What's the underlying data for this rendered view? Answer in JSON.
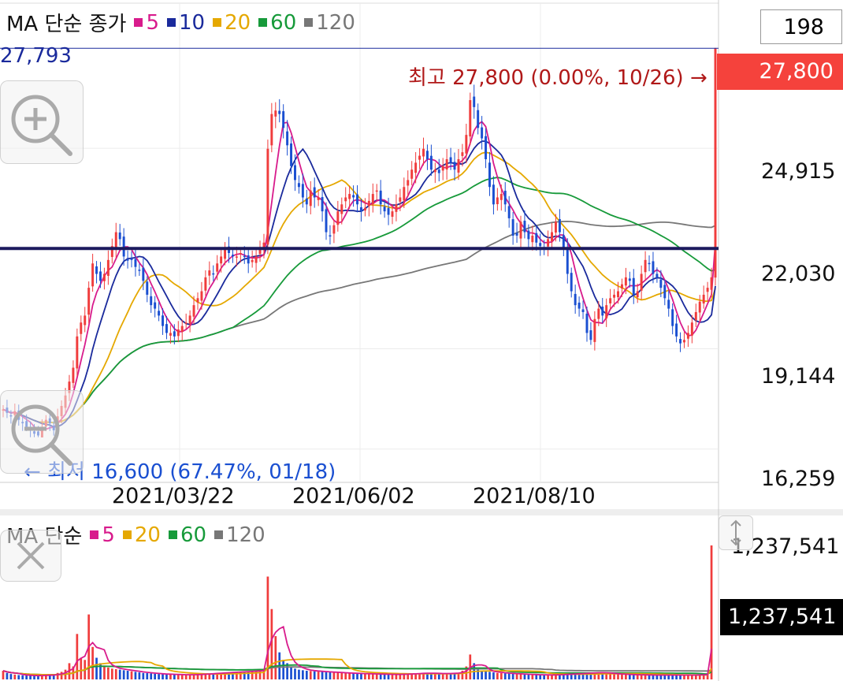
{
  "price_legend": {
    "title": "MA 단순 종가",
    "items": [
      {
        "label": "5",
        "color": "#d81b8c"
      },
      {
        "label": "10",
        "color": "#1a2a9c"
      },
      {
        "label": "20",
        "color": "#e5a800"
      },
      {
        "label": "60",
        "color": "#179a3a"
      },
      {
        "label": "120",
        "color": "#777777"
      }
    ]
  },
  "volume_legend": {
    "title": "MA 단순",
    "items": [
      {
        "label": "5",
        "color": "#d81b8c"
      },
      {
        "label": "20",
        "color": "#e5a800"
      },
      {
        "label": "60",
        "color": "#179a3a"
      },
      {
        "label": "120",
        "color": "#777777"
      }
    ]
  },
  "count_box": "198",
  "crosshair_value": "27,793",
  "high_note": "최고 27,800 (0.00%, 10/26) →",
  "low_note": "← 최저 16,600 (67.47%, 01/18)",
  "current_price_tag": "27,800",
  "volume_tag_top": "1,237,541",
  "volume_tag_current": "1,237,541",
  "colors": {
    "up": "#f03c3c",
    "down": "#1a4fd1",
    "hline": "#1c1a5e",
    "crosshair": "#1a2a9c",
    "high": "#b01818",
    "low": "#1a4fd1"
  },
  "icons": {
    "zoom_in": "zoom-in-icon",
    "zoom_out": "zoom-out-icon",
    "close": "close-icon",
    "resize": "resize-icon"
  },
  "chart_data": {
    "type": "candlestick",
    "y_ticks": [
      "24,915",
      "22,030",
      "19,144",
      "16,259"
    ],
    "x_ticks": [
      "2021/03/22",
      "2021/06/02",
      "2021/08/10"
    ],
    "ylim": [
      15300,
      29000
    ],
    "horizontal_line": 22030,
    "crosshair_y": 27793,
    "high": {
      "value": 27800,
      "date": "10/26"
    },
    "low": {
      "value": 16600,
      "date": "01/18"
    },
    "volume_y_ticks": [
      "1,237,541"
    ],
    "volume_ylim": [
      0,
      1237541
    ],
    "closes": [
      17400,
      17300,
      17200,
      17350,
      17100,
      17000,
      16900,
      16800,
      16700,
      16650,
      16900,
      17100,
      17000,
      16800,
      17200,
      17500,
      17800,
      18200,
      18600,
      19500,
      19900,
      20100,
      20900,
      21600,
      21300,
      21100,
      21300,
      21700,
      22100,
      22500,
      22300,
      21800,
      21700,
      21700,
      21500,
      21400,
      21100,
      20700,
      20400,
      20300,
      20100,
      19800,
      19600,
      19600,
      19500,
      19700,
      19800,
      19900,
      20100,
      20400,
      20600,
      20800,
      21200,
      21400,
      21300,
      21600,
      21800,
      22000,
      21900,
      21800,
      21800,
      21900,
      21800,
      21600,
      21700,
      21800,
      22000,
      22200,
      24900,
      25900,
      26000,
      25900,
      25500,
      25000,
      24400,
      24000,
      23800,
      23500,
      23300,
      23700,
      23500,
      23500,
      23100,
      22500,
      22400,
      22700,
      23100,
      23300,
      23500,
      23600,
      23500,
      23300,
      23100,
      23200,
      23400,
      23600,
      23700,
      23300,
      23100,
      23000,
      23100,
      23300,
      23500,
      23800,
      24000,
      24300,
      24500,
      24700,
      24900,
      24600,
      24300,
      24300,
      24200,
      24400,
      24600,
      24500,
      24300,
      24600,
      24800,
      25300,
      26300,
      26100,
      25500,
      25200,
      24600,
      23800,
      23300,
      23500,
      23600,
      23300,
      22900,
      22400,
      22400,
      22800,
      22500,
      22300,
      22400,
      22200,
      22100,
      22000,
      22300,
      22500,
      22800,
      22500,
      22000,
      21300,
      20800,
      20400,
      20300,
      20200,
      19600,
      19400,
      20000,
      20300,
      20100,
      20400,
      20600,
      20700,
      20800,
      21000,
      21200,
      21100,
      20700,
      20800,
      21300,
      21700,
      21600,
      21300,
      21200,
      20900,
      20600,
      20300,
      19800,
      19500,
      19300,
      19400,
      19600,
      19900,
      20200,
      20500,
      20700,
      20900,
      21200,
      27800
    ],
    "volume": [
      80000,
      60000,
      50000,
      45000,
      40000,
      38000,
      36000,
      35000,
      34000,
      33000,
      40000,
      45000,
      40000,
      38000,
      60000,
      70000,
      90000,
      150000,
      120000,
      420000,
      200000,
      180000,
      600000,
      300000,
      200000,
      150000,
      120000,
      110000,
      100000,
      95000,
      90000,
      85000,
      80000,
      75000,
      70000,
      65000,
      60000,
      58000,
      55000,
      52000,
      50000,
      48000,
      47000,
      46000,
      45000,
      44000,
      43000,
      42000,
      44000,
      46000,
      48000,
      50000,
      52000,
      55000,
      58000,
      60000,
      62000,
      64000,
      66000,
      68000,
      70000,
      72000,
      74000,
      75000,
      78000,
      80000,
      85000,
      90000,
      950000,
      650000,
      400000,
      250000,
      180000,
      150000,
      120000,
      100000,
      90000,
      85000,
      80000,
      78000,
      75000,
      72000,
      70000,
      68000,
      66000,
      64000,
      62000,
      60000,
      58000,
      56000,
      55000,
      54000,
      53000,
      52000,
      51000,
      50000,
      49000,
      48000,
      47000,
      46000,
      45000,
      46000,
      48000,
      50000,
      52000,
      54000,
      56000,
      58000,
      60000,
      58000,
      56000,
      54000,
      52000,
      54000,
      56000,
      58000,
      60000,
      62000,
      80000,
      120000,
      230000,
      150000,
      90000,
      80000,
      75000,
      70000,
      65000,
      60000,
      58000,
      56000,
      54000,
      52000,
      50000,
      48000,
      46000,
      45000,
      44000,
      43000,
      42000,
      41000,
      40000,
      42000,
      44000,
      46000,
      48000,
      50000,
      52000,
      54000,
      56000,
      58000,
      60000,
      62000,
      64000,
      66000,
      60000,
      56000,
      52000,
      50000,
      48000,
      46000,
      45000,
      44000,
      43000,
      42000,
      41000,
      40000,
      40000,
      40000,
      40000,
      40000,
      40000,
      40000,
      40000,
      40000,
      40000,
      40000,
      40000,
      40000,
      42000,
      44000,
      46000,
      48000,
      1237541
    ]
  }
}
